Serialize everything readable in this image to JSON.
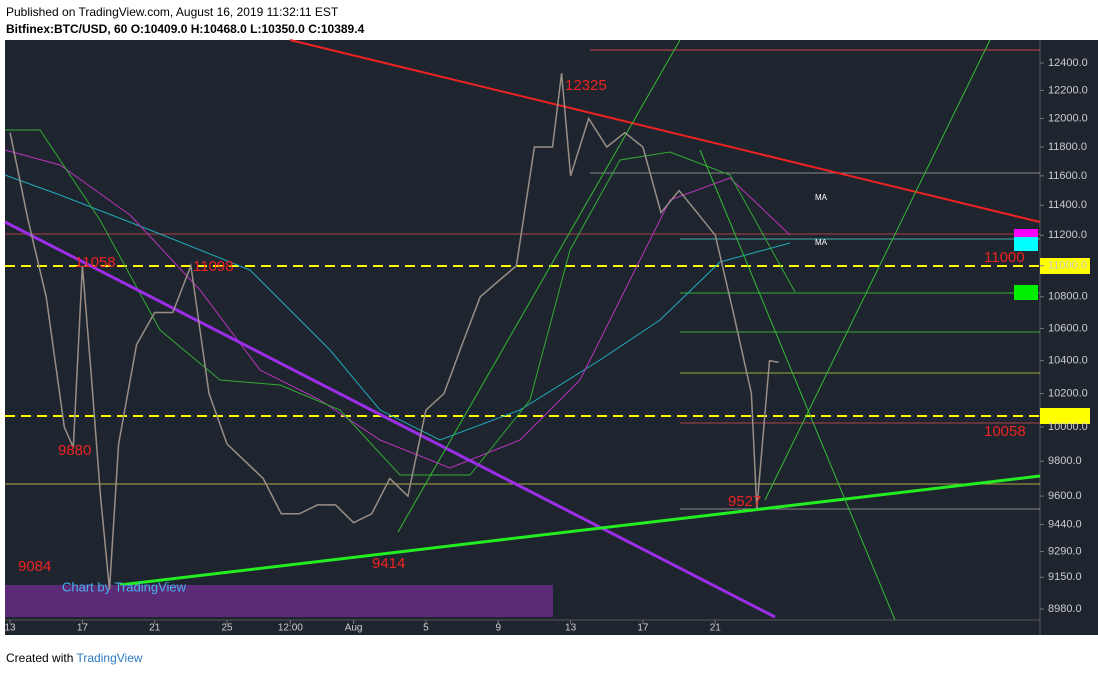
{
  "header": {
    "published": "Published on TradingView.com, August 16, 2019 11:32:11 EST",
    "symbol": "Bitfinex:BTC/USD, 60",
    "ohlc": [
      "O:10409.0",
      "H:10468.0",
      "L:10350.0",
      "C:10389.4"
    ]
  },
  "chart_data": {
    "type": "line",
    "color": "#9a8f86",
    "log_scale": true,
    "x": [
      13,
      14,
      15,
      16,
      16.5,
      17,
      17.5,
      18,
      18.5,
      19,
      20,
      21,
      22,
      23,
      24,
      25,
      26,
      27,
      28,
      29,
      30,
      31,
      32,
      33,
      34,
      35,
      36,
      37,
      38,
      39,
      40,
      41,
      42,
      43,
      43.5,
      44,
      45,
      46,
      47,
      48,
      49,
      50,
      51,
      52,
      53,
      54,
      54.3,
      55,
      55.5
    ],
    "values": [
      11900,
      11300,
      10800,
      10000,
      9880,
      11000,
      10300,
      9600,
      9084,
      9900,
      10500,
      10700,
      10700,
      11000,
      10200,
      9900,
      9800,
      9700,
      9500,
      9500,
      9550,
      9550,
      9450,
      9500,
      9700,
      9600,
      10100,
      10200,
      10500,
      10800,
      10900,
      11000,
      11800,
      11800,
      12325,
      11600,
      12000,
      11800,
      11900,
      11800,
      11350,
      11500,
      11350,
      11200,
      10700,
      10200,
      9527,
      10400,
      10389.4
    ],
    "xlim": [
      12.72,
      69.96
    ],
    "xticks": [
      13,
      17,
      21,
      25,
      {
        "value": 28.5,
        "label": "12:00"
      },
      {
        "value": 32,
        "label": "Aug"
      },
      {
        "value": 36,
        "label": "5"
      },
      {
        "value": 40,
        "label": "9"
      },
      {
        "value": 44,
        "label": "13"
      },
      {
        "value": 48,
        "label": "17"
      },
      {
        "value": 52,
        "label": "21"
      }
    ],
    "ylim": [
      8922,
      12570
    ],
    "yticks": [
      {
        "value": 12400,
        "label": "12400.0"
      },
      {
        "value": 12200,
        "label": "12200.0"
      },
      {
        "value": 12000,
        "label": "12000.0"
      },
      {
        "value": 11800,
        "label": "11800.0"
      },
      {
        "value": 11600,
        "label": "11600.0"
      },
      {
        "value": 11400,
        "label": "11400.0"
      },
      {
        "value": 11200,
        "label": "11200.0"
      },
      {
        "value": 11000,
        "label": "11000.0"
      },
      {
        "value": 10800,
        "label": "10800.0"
      },
      {
        "value": 10600,
        "label": "10600.0"
      },
      {
        "value": 10400,
        "label": "10400.0"
      },
      {
        "value": 10200,
        "label": "10200.0"
      },
      {
        "value": 10000,
        "label": "10000.0"
      },
      {
        "value": 9800,
        "label": "9800.0"
      },
      {
        "value": 9600,
        "label": "9600.0"
      },
      {
        "value": 9440,
        "label": "9440.0"
      },
      {
        "value": 9290,
        "label": "9290.0"
      },
      {
        "value": 9150,
        "label": "9150.0"
      },
      {
        "value": 8980,
        "label": "8980.0"
      }
    ],
    "annotations": [
      "12325",
      "11058",
      "11098",
      "9880",
      "9084",
      "9414",
      "9527",
      "11000",
      "10058",
      "MA",
      "MA"
    ],
    "watermark": "Chart by TradingView"
  },
  "footer": {
    "created": "Created with",
    "brand": "TradingView"
  }
}
